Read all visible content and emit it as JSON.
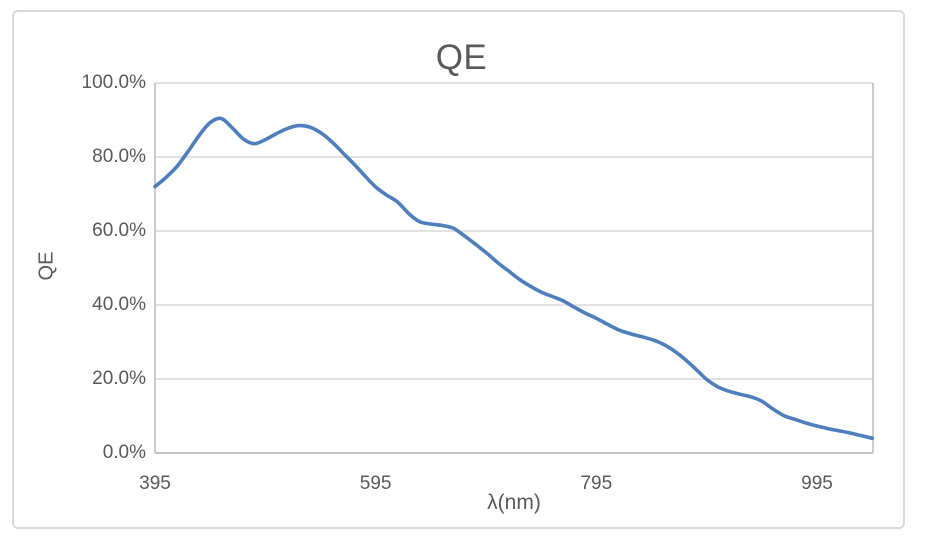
{
  "window": {
    "background_color": "#ffffff",
    "frame_border_color": "#d9d9d9"
  },
  "style": {
    "line_color": "#4e7ebc",
    "gridline_color": "#d9d9d9",
    "axis_line_color": "#bfbfbf",
    "text_color": "#595959"
  },
  "chart_data": {
    "type": "line",
    "title": "QE",
    "xlabel": "λ(nm)",
    "ylabel": "QE",
    "x_tick_values": [
      395,
      595,
      795,
      995
    ],
    "x_tick_labels": [
      "395",
      "595",
      "795",
      "995"
    ],
    "y_tick_values": [
      0,
      20,
      40,
      60,
      80,
      100
    ],
    "y_tick_labels": [
      "0.0%",
      "20.0%",
      "40.0%",
      "60.0%",
      "80.0%",
      "100.0%"
    ],
    "xlim": [
      395,
      1045
    ],
    "ylim": [
      0,
      100
    ],
    "grid": true,
    "legend": false,
    "series": [
      {
        "name": "QE",
        "x": [
          395,
          405,
          415,
          425,
          435,
          445,
          455,
          465,
          475,
          485,
          495,
          505,
          515,
          525,
          535,
          545,
          555,
          565,
          575,
          585,
          595,
          605,
          615,
          625,
          635,
          645,
          655,
          665,
          675,
          685,
          695,
          705,
          715,
          725,
          735,
          745,
          755,
          765,
          775,
          785,
          795,
          805,
          815,
          825,
          835,
          845,
          855,
          865,
          875,
          885,
          895,
          905,
          915,
          925,
          935,
          945,
          955,
          965,
          975,
          985,
          995,
          1005,
          1015,
          1025,
          1035,
          1045
        ],
        "y_percent": [
          72.0,
          74.5,
          77.5,
          81.5,
          85.8,
          89.3,
          90.4,
          87.9,
          84.9,
          83.6,
          84.7,
          86.3,
          87.7,
          88.5,
          88.1,
          86.6,
          84.2,
          81.2,
          78.2,
          75.0,
          71.9,
          69.7,
          67.8,
          64.7,
          62.5,
          61.9,
          61.5,
          60.8,
          58.8,
          56.5,
          54.2,
          51.6,
          49.3,
          47.0,
          45.1,
          43.5,
          42.3,
          41.1,
          39.4,
          37.8,
          36.4,
          34.8,
          33.3,
          32.3,
          31.5,
          30.7,
          29.5,
          27.7,
          25.4,
          22.7,
          19.9,
          17.9,
          16.7,
          15.9,
          15.2,
          14.0,
          11.9,
          10.1,
          9.1,
          8.1,
          7.3,
          6.6,
          6.0,
          5.4,
          4.7,
          4.0
        ]
      }
    ]
  }
}
